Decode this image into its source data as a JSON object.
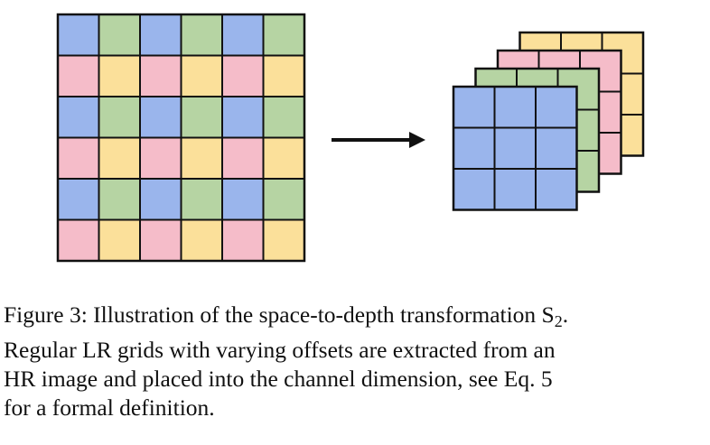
{
  "figure": {
    "colors": {
      "blue": "#9ab5ec",
      "green": "#b6d4a3",
      "pink": "#f5bcc9",
      "yellow": "#fbe09a",
      "line": "#111111"
    },
    "hr_grid_pattern": [
      [
        "blue",
        "green",
        "blue",
        "green",
        "blue",
        "green"
      ],
      [
        "pink",
        "yellow",
        "pink",
        "yellow",
        "pink",
        "yellow"
      ],
      [
        "blue",
        "green",
        "blue",
        "green",
        "blue",
        "green"
      ],
      [
        "pink",
        "yellow",
        "pink",
        "yellow",
        "pink",
        "yellow"
      ],
      [
        "blue",
        "green",
        "blue",
        "green",
        "blue",
        "green"
      ],
      [
        "pink",
        "yellow",
        "pink",
        "yellow",
        "pink",
        "yellow"
      ]
    ],
    "channel_stack": [
      "yellow",
      "pink",
      "green",
      "blue"
    ],
    "lr_grid_size": 3
  },
  "caption": {
    "lines": [
      "Figure 3: Illustration of the space-to-depth transformation S",
      "Regular LR grids with varying offsets are extracted from an",
      "HR image and placed into the channel dimension, see Eq. 5",
      "for a formal definition."
    ],
    "subscript": "2",
    "end_period": "."
  }
}
